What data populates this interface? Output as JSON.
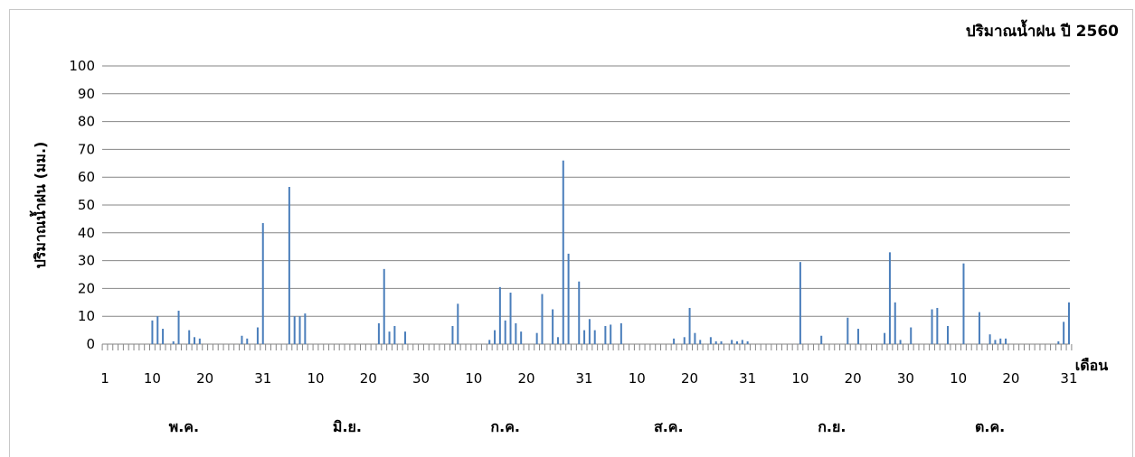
{
  "chart_data": {
    "type": "bar",
    "title": "ปริมาณน้ำฝน ปี 2560",
    "ylabel": "ปริมาณน้ำฝน (มม.)",
    "xlabel": "เดือน",
    "ylim": [
      0,
      100
    ],
    "yticks": [
      0,
      10,
      20,
      30,
      40,
      50,
      60,
      70,
      80,
      90,
      100
    ],
    "grid": true,
    "color": "#4a7ebb",
    "x_tick_labels": [
      {
        "day": 1,
        "label": "1"
      },
      {
        "day": 10,
        "label": "10"
      },
      {
        "day": 20,
        "label": "20"
      },
      {
        "day": 31,
        "label": "31"
      },
      {
        "day": 41,
        "label": "10"
      },
      {
        "day": 51,
        "label": "20"
      },
      {
        "day": 61,
        "label": "30"
      },
      {
        "day": 71,
        "label": "10"
      },
      {
        "day": 81,
        "label": "20"
      },
      {
        "day": 92,
        "label": "31"
      },
      {
        "day": 102,
        "label": "10"
      },
      {
        "day": 112,
        "label": "20"
      },
      {
        "day": 123,
        "label": "31"
      },
      {
        "day": 133,
        "label": "10"
      },
      {
        "day": 143,
        "label": "20"
      },
      {
        "day": 153,
        "label": "30"
      },
      {
        "day": 163,
        "label": "10"
      },
      {
        "day": 173,
        "label": "20"
      },
      {
        "day": 184,
        "label": "31"
      }
    ],
    "months": [
      {
        "label": "พ.ค.",
        "center_day": 16
      },
      {
        "label": "มิ.ย.",
        "center_day": 47
      },
      {
        "label": "ก.ค.",
        "center_day": 77
      },
      {
        "label": "ส.ค.",
        "center_day": 108
      },
      {
        "label": "ก.ย.",
        "center_day": 139
      },
      {
        "label": "ต.ค.",
        "center_day": 169
      }
    ],
    "series": [
      {
        "values": [
          {
            "day": 10,
            "value": 8.5
          },
          {
            "day": 11,
            "value": 10
          },
          {
            "day": 12,
            "value": 5.5
          },
          {
            "day": 14,
            "value": 1
          },
          {
            "day": 15,
            "value": 12
          },
          {
            "day": 17,
            "value": 5
          },
          {
            "day": 18,
            "value": 2.5
          },
          {
            "day": 19,
            "value": 2
          },
          {
            "day": 27,
            "value": 3
          },
          {
            "day": 28,
            "value": 2
          },
          {
            "day": 30,
            "value": 6
          },
          {
            "day": 31,
            "value": 43.5
          },
          {
            "day": 36,
            "value": 56.5
          },
          {
            "day": 37,
            "value": 10
          },
          {
            "day": 38,
            "value": 10
          },
          {
            "day": 39,
            "value": 11
          },
          {
            "day": 53,
            "value": 7.5
          },
          {
            "day": 54,
            "value": 27
          },
          {
            "day": 55,
            "value": 4.5
          },
          {
            "day": 56,
            "value": 6.5
          },
          {
            "day": 58,
            "value": 4.5
          },
          {
            "day": 67,
            "value": 6.5
          },
          {
            "day": 68,
            "value": 14.5
          },
          {
            "day": 74,
            "value": 1.5
          },
          {
            "day": 75,
            "value": 5
          },
          {
            "day": 76,
            "value": 20.5
          },
          {
            "day": 77,
            "value": 8.5
          },
          {
            "day": 78,
            "value": 18.5
          },
          {
            "day": 79,
            "value": 7.5
          },
          {
            "day": 80,
            "value": 4.5
          },
          {
            "day": 83,
            "value": 4
          },
          {
            "day": 84,
            "value": 18
          },
          {
            "day": 86,
            "value": 12.5
          },
          {
            "day": 87,
            "value": 2.5
          },
          {
            "day": 88,
            "value": 66
          },
          {
            "day": 89,
            "value": 32.5
          },
          {
            "day": 91,
            "value": 22.5
          },
          {
            "day": 92,
            "value": 5
          },
          {
            "day": 93,
            "value": 9
          },
          {
            "day": 94,
            "value": 5
          },
          {
            "day": 96,
            "value": 6.5
          },
          {
            "day": 97,
            "value": 7
          },
          {
            "day": 99,
            "value": 7.5
          },
          {
            "day": 109,
            "value": 2
          },
          {
            "day": 111,
            "value": 2.5
          },
          {
            "day": 112,
            "value": 13
          },
          {
            "day": 113,
            "value": 4
          },
          {
            "day": 114,
            "value": 1.5
          },
          {
            "day": 116,
            "value": 2.5
          },
          {
            "day": 117,
            "value": 1
          },
          {
            "day": 118,
            "value": 1
          },
          {
            "day": 120,
            "value": 1.5
          },
          {
            "day": 121,
            "value": 1
          },
          {
            "day": 122,
            "value": 1.5
          },
          {
            "day": 123,
            "value": 1
          },
          {
            "day": 133,
            "value": 29.5
          },
          {
            "day": 137,
            "value": 3
          },
          {
            "day": 142,
            "value": 9.5
          },
          {
            "day": 144,
            "value": 5.5
          },
          {
            "day": 149,
            "value": 4
          },
          {
            "day": 150,
            "value": 33
          },
          {
            "day": 151,
            "value": 15
          },
          {
            "day": 152,
            "value": 1.5
          },
          {
            "day": 154,
            "value": 6
          },
          {
            "day": 158,
            "value": 12.5
          },
          {
            "day": 159,
            "value": 13
          },
          {
            "day": 161,
            "value": 6.5
          },
          {
            "day": 164,
            "value": 29
          },
          {
            "day": 167,
            "value": 11.5
          },
          {
            "day": 169,
            "value": 3.5
          },
          {
            "day": 170,
            "value": 1.5
          },
          {
            "day": 171,
            "value": 2
          },
          {
            "day": 172,
            "value": 2
          },
          {
            "day": 182,
            "value": 1
          },
          {
            "day": 183,
            "value": 8
          },
          {
            "day": 184,
            "value": 15
          }
        ]
      }
    ]
  }
}
